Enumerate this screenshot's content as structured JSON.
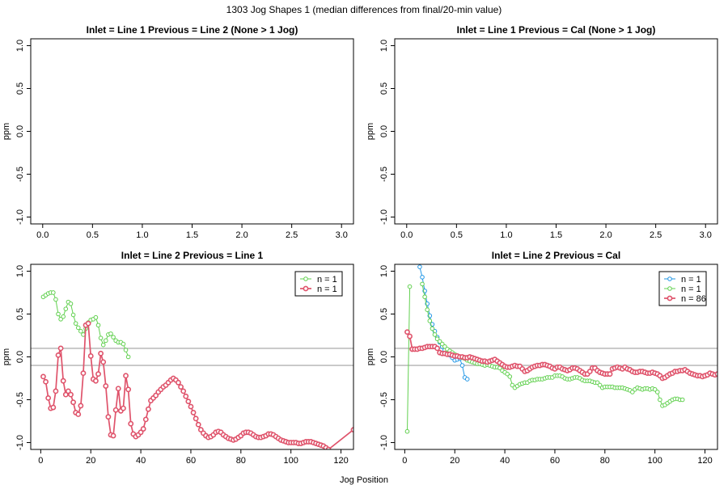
{
  "figure": {
    "title": "1303 Jog Shapes 1 (median differences from final/20-min value)",
    "xlabel": "Jog Position"
  },
  "colors": {
    "green": "#61D04F",
    "red": "#DF536B",
    "blue": "#2297E6",
    "ref": "#BEBEBE"
  },
  "chart_data": [
    {
      "type": "scatter",
      "title": "Inlet = Line 1  Previous = Line 2 (None > 1 Jog)",
      "ylabel": "ppm",
      "xlim": [
        -0.12,
        3.12
      ],
      "ylim": [
        -1.08,
        1.08
      ],
      "xticks": [
        "0.0",
        "0.5",
        "1.0",
        "1.5",
        "2.0",
        "2.5",
        "3.0"
      ],
      "xtick_values": [
        0,
        0.5,
        1,
        1.5,
        2,
        2.5,
        3
      ],
      "yticks": [
        "-1.0",
        "-0.5",
        "0.0",
        "0.5",
        "1.0"
      ],
      "ytick_values": [
        -1,
        -0.5,
        0,
        0.5,
        1
      ],
      "ref_lines": [],
      "legend": [],
      "series": []
    },
    {
      "type": "scatter",
      "title": "Inlet = Line 1  Previous = Cal (None > 1 Jog)",
      "ylabel": "ppm",
      "xlim": [
        -0.12,
        3.12
      ],
      "ylim": [
        -1.08,
        1.08
      ],
      "xticks": [
        "0.0",
        "0.5",
        "1.0",
        "1.5",
        "2.0",
        "2.5",
        "3.0"
      ],
      "xtick_values": [
        0,
        0.5,
        1,
        1.5,
        2,
        2.5,
        3
      ],
      "yticks": [
        "-1.0",
        "-0.5",
        "0.0",
        "0.5",
        "1.0"
      ],
      "ytick_values": [
        -1,
        -0.5,
        0,
        0.5,
        1
      ],
      "ref_lines": [],
      "legend": [],
      "series": []
    },
    {
      "type": "line",
      "title": "Inlet = Line 2  Previous = Line 1",
      "ylabel": "ppm",
      "xlim": [
        -4,
        125
      ],
      "ylim": [
        -1.08,
        1.08
      ],
      "xticks": [
        "0",
        "20",
        "40",
        "60",
        "80",
        "100",
        "120"
      ],
      "xtick_values": [
        0,
        20,
        40,
        60,
        80,
        100,
        120
      ],
      "yticks": [
        "-1.0",
        "-0.5",
        "0.0",
        "0.5",
        "1.0"
      ],
      "ytick_values": [
        -1,
        -0.5,
        0,
        0.5,
        1
      ],
      "ref_lines": [
        0.1,
        -0.1
      ],
      "legend": [
        {
          "label": "n = 1",
          "color": "green",
          "thick": false
        },
        {
          "label": "n = 1",
          "color": "red",
          "thick": true
        }
      ],
      "series": [
        {
          "name": "n = 1",
          "color": "green",
          "thick": false,
          "x": [
            1,
            2,
            3,
            4,
            5,
            6,
            7,
            8,
            9,
            10,
            11,
            12,
            13,
            14,
            15,
            16,
            17,
            18,
            19,
            20,
            21,
            22,
            23,
            24,
            25,
            26,
            27,
            28,
            29,
            30,
            31,
            32,
            33,
            34,
            35,
            36
          ],
          "y": [
            0.7,
            0.72,
            0.74,
            0.75,
            0.75,
            0.67,
            0.5,
            0.44,
            0.47,
            0.56,
            0.64,
            0.62,
            0.49,
            0.39,
            0.34,
            0.3,
            0.26,
            0.33,
            0.4,
            0.43,
            0.44,
            0.46,
            0.37,
            0.22,
            0.14,
            0.19,
            0.26,
            0.27,
            0.23,
            0.19,
            0.17,
            0.17,
            0.15,
            0.08,
            0.0,
            null
          ]
        },
        {
          "name": "n = 1",
          "color": "red",
          "thick": true,
          "x": [
            1,
            2,
            3,
            4,
            5,
            6,
            7,
            8,
            9,
            10,
            11,
            12,
            13,
            14,
            15,
            16,
            17,
            18,
            19,
            20,
            21,
            22,
            23,
            24,
            25,
            26,
            27,
            28,
            29,
            30,
            31,
            32,
            33,
            34,
            35,
            36,
            37,
            38,
            39,
            40,
            41,
            42,
            43,
            44,
            45,
            46,
            47,
            48,
            49,
            50,
            51,
            52,
            53,
            54,
            55,
            56,
            57,
            58,
            59,
            60,
            61,
            62,
            63,
            64,
            65,
            66,
            67,
            68,
            69,
            70,
            71,
            72,
            73,
            74,
            75,
            76,
            77,
            78,
            79,
            80,
            81,
            82,
            83,
            84,
            85,
            86,
            87,
            88,
            89,
            90,
            91,
            92,
            93,
            94,
            95,
            96,
            97,
            98,
            99,
            100,
            101,
            102,
            103,
            104,
            105,
            106,
            107,
            108,
            109,
            110,
            111,
            112,
            113,
            114,
            115,
            125
          ],
          "y": [
            -0.23,
            -0.29,
            -0.48,
            -0.6,
            -0.59,
            -0.4,
            0.02,
            0.1,
            -0.28,
            -0.44,
            -0.4,
            -0.44,
            -0.53,
            -0.65,
            -0.67,
            -0.57,
            -0.19,
            0.37,
            0.39,
            0.01,
            -0.26,
            -0.28,
            -0.2,
            0.04,
            -0.06,
            -0.34,
            -0.7,
            -0.91,
            -0.92,
            -0.62,
            -0.37,
            -0.63,
            -0.6,
            -0.22,
            -0.38,
            -0.78,
            -0.9,
            -0.93,
            -0.91,
            -0.88,
            -0.84,
            -0.73,
            -0.61,
            -0.51,
            -0.48,
            -0.45,
            -0.41,
            -0.38,
            -0.35,
            -0.33,
            -0.3,
            -0.27,
            -0.25,
            -0.27,
            -0.3,
            -0.35,
            -0.4,
            -0.46,
            -0.52,
            -0.58,
            -0.65,
            -0.72,
            -0.79,
            -0.85,
            -0.89,
            -0.92,
            -0.94,
            -0.93,
            -0.91,
            -0.88,
            -0.87,
            -0.88,
            -0.91,
            -0.93,
            -0.95,
            -0.96,
            -0.97,
            -0.96,
            -0.94,
            -0.92,
            -0.89,
            -0.88,
            -0.88,
            -0.89,
            -0.91,
            -0.93,
            -0.94,
            -0.94,
            -0.93,
            -0.92,
            -0.9,
            -0.9,
            -0.91,
            -0.93,
            -0.95,
            -0.97,
            -0.98,
            -0.99,
            -1.0,
            -1.0,
            -1.0,
            -1.0,
            -1.01,
            -1.01,
            -1.0,
            -0.99,
            -0.99,
            -0.99,
            -1.0,
            -1.01,
            -1.02,
            -1.03,
            -1.04,
            -1.06,
            -1.08,
            -0.85
          ]
        }
      ]
    },
    {
      "type": "line",
      "title": "Inlet = Line 2  Previous = Cal",
      "ylabel": "ppm",
      "xlim": [
        -4,
        125
      ],
      "ylim": [
        -1.08,
        1.08
      ],
      "xticks": [
        "0",
        "20",
        "40",
        "60",
        "80",
        "100",
        "120"
      ],
      "xtick_values": [
        0,
        20,
        40,
        60,
        80,
        100,
        120
      ],
      "yticks": [
        "-1.0",
        "-0.5",
        "0.0",
        "0.5",
        "1.0"
      ],
      "ytick_values": [
        -1,
        -0.5,
        0,
        0.5,
        1
      ],
      "ref_lines": [
        0.1,
        -0.1
      ],
      "legend": [
        {
          "label": "n = 1",
          "color": "blue",
          "thick": false
        },
        {
          "label": "n = 1",
          "color": "green",
          "thick": false
        },
        {
          "label": "n = 86",
          "color": "red",
          "thick": true
        }
      ],
      "series": [
        {
          "name": "n = 1",
          "color": "blue",
          "thick": false,
          "x": [
            6,
            7,
            8,
            9,
            10,
            11,
            12,
            13,
            14,
            15,
            16,
            17,
            18,
            19,
            20,
            21,
            22,
            23,
            24,
            25
          ],
          "y": [
            1.05,
            0.93,
            0.77,
            0.62,
            0.48,
            0.38,
            0.3,
            0.23,
            0.17,
            0.12,
            0.08,
            0.05,
            0.02,
            -0.01,
            -0.04,
            -0.03,
            -0.02,
            -0.1,
            -0.24,
            -0.26
          ]
        },
        {
          "name": "n = 1",
          "color": "green",
          "thick": false,
          "x": [
            1,
            2,
            7,
            8,
            9,
            10,
            11,
            12,
            13,
            14,
            15,
            16,
            17,
            18,
            19,
            20,
            21,
            22,
            23,
            24,
            25,
            26,
            27,
            28,
            29,
            30,
            31,
            32,
            33,
            34,
            35,
            36,
            37,
            38,
            39,
            40,
            41,
            42,
            43,
            44,
            45,
            46,
            47,
            48,
            49,
            50,
            51,
            52,
            53,
            54,
            55,
            56,
            57,
            58,
            59,
            60,
            61,
            62,
            63,
            64,
            65,
            66,
            67,
            68,
            69,
            70,
            71,
            72,
            73,
            74,
            75,
            76,
            77,
            78,
            79,
            80,
            81,
            82,
            83,
            84,
            85,
            86,
            87,
            88,
            89,
            90,
            91,
            92,
            93,
            94,
            95,
            96,
            97,
            98,
            99,
            100,
            101,
            102,
            103,
            104,
            105,
            106,
            107,
            108,
            109,
            110,
            111
          ],
          "y": [
            -0.87,
            0.82,
            0.85,
            0.7,
            0.55,
            0.42,
            0.33,
            0.26,
            0.21,
            0.18,
            0.15,
            0.12,
            0.09,
            0.07,
            0.05,
            0.03,
            0.01,
            0.0,
            -0.01,
            -0.02,
            -0.04,
            -0.05,
            -0.06,
            -0.07,
            -0.08,
            -0.08,
            -0.09,
            -0.1,
            -0.09,
            -0.1,
            -0.11,
            -0.12,
            -0.12,
            -0.13,
            -0.16,
            -0.18,
            -0.2,
            -0.23,
            -0.33,
            -0.36,
            -0.34,
            -0.32,
            -0.31,
            -0.3,
            -0.3,
            -0.28,
            -0.27,
            -0.27,
            -0.26,
            -0.26,
            -0.26,
            -0.25,
            -0.24,
            -0.24,
            -0.24,
            -0.22,
            -0.22,
            -0.22,
            -0.23,
            -0.25,
            -0.26,
            -0.26,
            -0.25,
            -0.24,
            -0.24,
            -0.25,
            -0.27,
            -0.28,
            -0.28,
            -0.28,
            -0.29,
            -0.3,
            -0.3,
            -0.33,
            -0.36,
            -0.35,
            -0.35,
            -0.35,
            -0.35,
            -0.36,
            -0.36,
            -0.36,
            -0.36,
            -0.37,
            -0.38,
            -0.39,
            -0.41,
            -0.38,
            -0.36,
            -0.37,
            -0.38,
            -0.37,
            -0.37,
            -0.38,
            -0.37,
            -0.38,
            -0.41,
            -0.5,
            -0.57,
            -0.56,
            -0.54,
            -0.52,
            -0.5,
            -0.49,
            -0.49,
            -0.5,
            -0.5
          ],
          "skip_line_before_index": 2
        },
        {
          "name": "n = 86",
          "color": "red",
          "thick": true,
          "x": [
            1,
            2,
            3,
            4,
            5,
            6,
            7,
            8,
            9,
            10,
            11,
            12,
            13,
            14,
            15,
            16,
            17,
            18,
            19,
            20,
            21,
            22,
            23,
            24,
            25,
            26,
            27,
            28,
            29,
            30,
            31,
            32,
            33,
            34,
            35,
            36,
            37,
            38,
            39,
            40,
            41,
            42,
            43,
            44,
            45,
            46,
            47,
            48,
            49,
            50,
            51,
            52,
            53,
            54,
            55,
            56,
            57,
            58,
            59,
            60,
            61,
            62,
            63,
            64,
            65,
            66,
            67,
            68,
            69,
            70,
            71,
            72,
            73,
            74,
            75,
            76,
            77,
            78,
            79,
            80,
            81,
            82,
            83,
            84,
            85,
            86,
            87,
            88,
            89,
            90,
            91,
            92,
            93,
            94,
            95,
            96,
            97,
            98,
            99,
            100,
            101,
            102,
            103,
            104,
            105,
            106,
            107,
            108,
            109,
            110,
            111,
            112,
            113,
            114,
            115,
            116,
            117,
            118,
            119,
            120,
            121,
            122,
            123,
            124,
            125
          ],
          "y": [
            0.29,
            0.24,
            0.09,
            0.09,
            0.09,
            0.1,
            0.1,
            0.11,
            0.12,
            0.12,
            0.12,
            0.12,
            0.1,
            0.05,
            0.04,
            0.04,
            0.03,
            0.03,
            0.02,
            0.01,
            0.01,
            0.0,
            0.0,
            -0.01,
            -0.01,
            0.0,
            -0.01,
            -0.02,
            -0.03,
            -0.04,
            -0.05,
            -0.05,
            -0.06,
            -0.05,
            -0.04,
            -0.03,
            -0.05,
            -0.07,
            -0.09,
            -0.11,
            -0.12,
            -0.12,
            -0.11,
            -0.1,
            -0.11,
            -0.11,
            -0.14,
            -0.17,
            -0.16,
            -0.14,
            -0.12,
            -0.11,
            -0.1,
            -0.1,
            -0.09,
            -0.09,
            -0.1,
            -0.11,
            -0.13,
            -0.14,
            -0.12,
            -0.12,
            -0.14,
            -0.15,
            -0.16,
            -0.15,
            -0.13,
            -0.13,
            -0.14,
            -0.16,
            -0.18,
            -0.2,
            -0.2,
            -0.17,
            -0.13,
            -0.13,
            -0.16,
            -0.18,
            -0.19,
            -0.2,
            -0.2,
            -0.2,
            -0.14,
            -0.13,
            -0.12,
            -0.13,
            -0.14,
            -0.12,
            -0.14,
            -0.15,
            -0.17,
            -0.18,
            -0.18,
            -0.17,
            -0.17,
            -0.18,
            -0.19,
            -0.19,
            -0.18,
            -0.19,
            -0.2,
            -0.22,
            -0.25,
            -0.24,
            -0.22,
            -0.2,
            -0.19,
            -0.17,
            -0.17,
            -0.16,
            -0.16,
            -0.15,
            -0.17,
            -0.19,
            -0.2,
            -0.21,
            -0.22,
            -0.22,
            -0.23,
            -0.22,
            -0.21,
            -0.19,
            -0.2,
            -0.21,
            -0.2
          ]
        }
      ]
    }
  ]
}
